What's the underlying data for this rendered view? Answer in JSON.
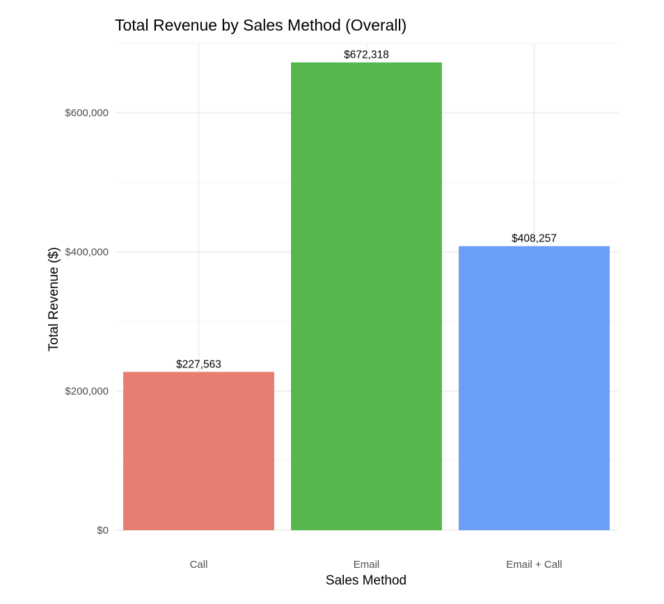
{
  "chart_data": {
    "type": "bar",
    "title": "Total Revenue by Sales Method (Overall)",
    "xlabel": "Sales Method",
    "ylabel": "Total Revenue ($)",
    "categories": [
      "Call",
      "Email",
      "Email + Call"
    ],
    "values": [
      227563,
      672318,
      408257
    ],
    "value_labels": [
      "$227,563",
      "$672,318",
      "$408,257"
    ],
    "colors": [
      "#E87E72",
      "#55B74E",
      "#6B9EF8"
    ],
    "ylim": [
      0,
      700000
    ],
    "y_ticks": [
      0,
      200000,
      400000,
      600000
    ],
    "y_tick_labels": [
      "$0",
      "$200,000",
      "$400,000",
      "$600,000"
    ],
    "y_minor_ticks": [
      100000,
      300000,
      500000,
      700000
    ],
    "grid": true,
    "legend": "none"
  }
}
